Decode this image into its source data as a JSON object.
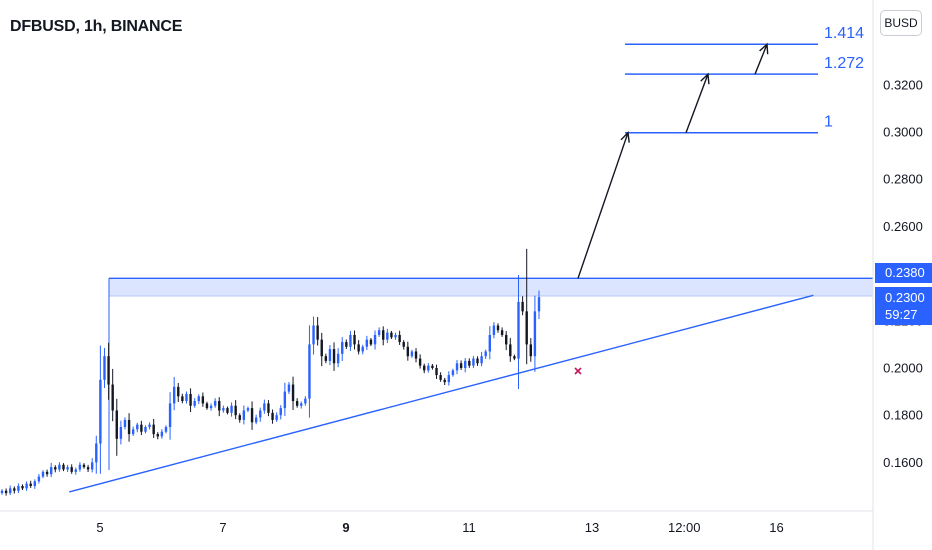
{
  "header": {
    "symbol_title": "DFBUSD, 1h, BINANCE",
    "currency_label": "BUSD"
  },
  "price_tags": {
    "resistance": "0.2380",
    "last_price": "0.2300",
    "countdown": "59:27"
  },
  "colors": {
    "accent": "#2962ff",
    "zone_fill": "#dbe5ff",
    "candle_up": "#2962ff",
    "candle_down": "#131722",
    "marker": "#c2185b"
  },
  "chart_data": {
    "type": "candlestick",
    "title": "DFBUSD, 1h, BINANCE",
    "x_tick_labels": [
      "5",
      "7",
      "9",
      "11",
      "13",
      "12:00",
      "16"
    ],
    "bold_x_ticks": [
      "9"
    ],
    "y_tick_labels": [
      "0.1600",
      "0.1800",
      "0.2000",
      "0.2200",
      "0.2400",
      "0.2600",
      "0.2800",
      "0.3000",
      "0.3200"
    ],
    "ylim": [
      0.138,
      0.348
    ],
    "resistance_zone": {
      "upper": 0.238,
      "lower": 0.2305
    },
    "current_price": 0.23,
    "fib_levels": [
      {
        "label": "1",
        "price": 0.2997
      },
      {
        "label": "1.272",
        "price": 0.3245
      },
      {
        "label": "1.414",
        "price": 0.3372
      }
    ],
    "trendline": {
      "from": [
        "4.5",
        0.1475
      ],
      "to": [
        "16.6",
        0.2308
      ]
    },
    "projection_arrows": [
      {
        "from": 0.238,
        "to": 0.2997
      },
      {
        "from": 0.2997,
        "to": 0.3245
      },
      {
        "from": 0.3245,
        "to": 0.3372
      }
    ],
    "close_prices": [
      0.148,
      0.147,
      0.149,
      0.148,
      0.15,
      0.149,
      0.151,
      0.15,
      0.152,
      0.154,
      0.156,
      0.155,
      0.158,
      0.157,
      0.159,
      0.157,
      0.158,
      0.156,
      0.157,
      0.159,
      0.158,
      0.157,
      0.16,
      0.168,
      0.195,
      0.205,
      0.193,
      0.182,
      0.17,
      0.175,
      0.178,
      0.172,
      0.174,
      0.176,
      0.173,
      0.175,
      0.176,
      0.172,
      0.171,
      0.173,
      0.175,
      0.185,
      0.192,
      0.188,
      0.186,
      0.189,
      0.184,
      0.186,
      0.188,
      0.185,
      0.183,
      0.184,
      0.186,
      0.182,
      0.183,
      0.181,
      0.184,
      0.18,
      0.178,
      0.182,
      0.183,
      0.177,
      0.179,
      0.182,
      0.185,
      0.181,
      0.178,
      0.18,
      0.183,
      0.19,
      0.193,
      0.186,
      0.184,
      0.185,
      0.187,
      0.21,
      0.218,
      0.212,
      0.205,
      0.203,
      0.208,
      0.202,
      0.206,
      0.211,
      0.209,
      0.214,
      0.21,
      0.207,
      0.209,
      0.212,
      0.21,
      0.214,
      0.216,
      0.212,
      0.215,
      0.213,
      0.214,
      0.211,
      0.209,
      0.205,
      0.207,
      0.204,
      0.201,
      0.199,
      0.201,
      0.2,
      0.197,
      0.195,
      0.194,
      0.197,
      0.199,
      0.202,
      0.2,
      0.203,
      0.201,
      0.204,
      0.202,
      0.205,
      0.207,
      0.214,
      0.218,
      0.216,
      0.214,
      0.21,
      0.205,
      0.204,
      0.228,
      0.224,
      0.21,
      0.205,
      0.224,
      0.23
    ]
  }
}
